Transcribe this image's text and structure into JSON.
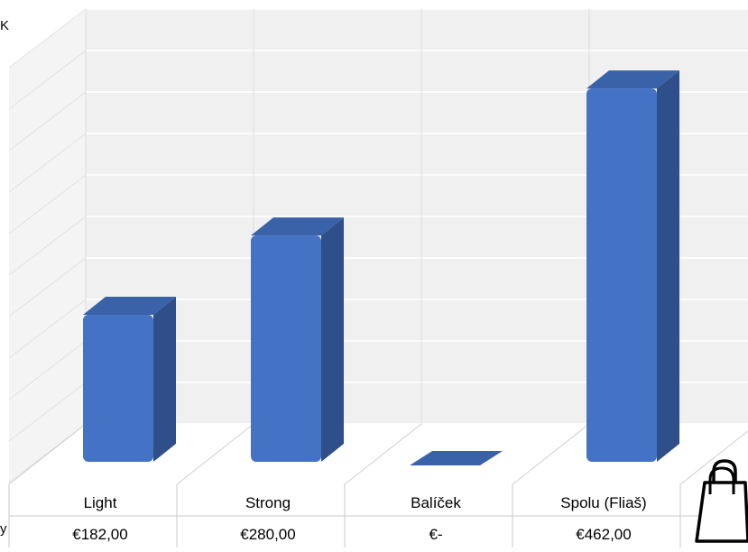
{
  "corner_fragment": "K",
  "edge_fragment": "y",
  "icon": "shopping-bag-icon",
  "colors": {
    "bar_front": "#4472C4",
    "bar_side": "#2F4F8A",
    "bar_top": "#3A62A8",
    "wall": "#F0F0F0",
    "grid": "#FFFFFF",
    "table_border": "#C8C8C8"
  },
  "chart_data": {
    "type": "bar",
    "categories": [
      "Light",
      "Strong",
      "Balíček",
      "Spolu (Fliaš)"
    ],
    "values": [
      182,
      280,
      0,
      462
    ],
    "value_labels": [
      "€182,00",
      "€280,00",
      "€-",
      "€462,00"
    ],
    "title": "",
    "xlabel": "",
    "ylabel": "",
    "ylim": [
      0,
      480
    ],
    "grid": true,
    "style": "3d-column with data table"
  }
}
